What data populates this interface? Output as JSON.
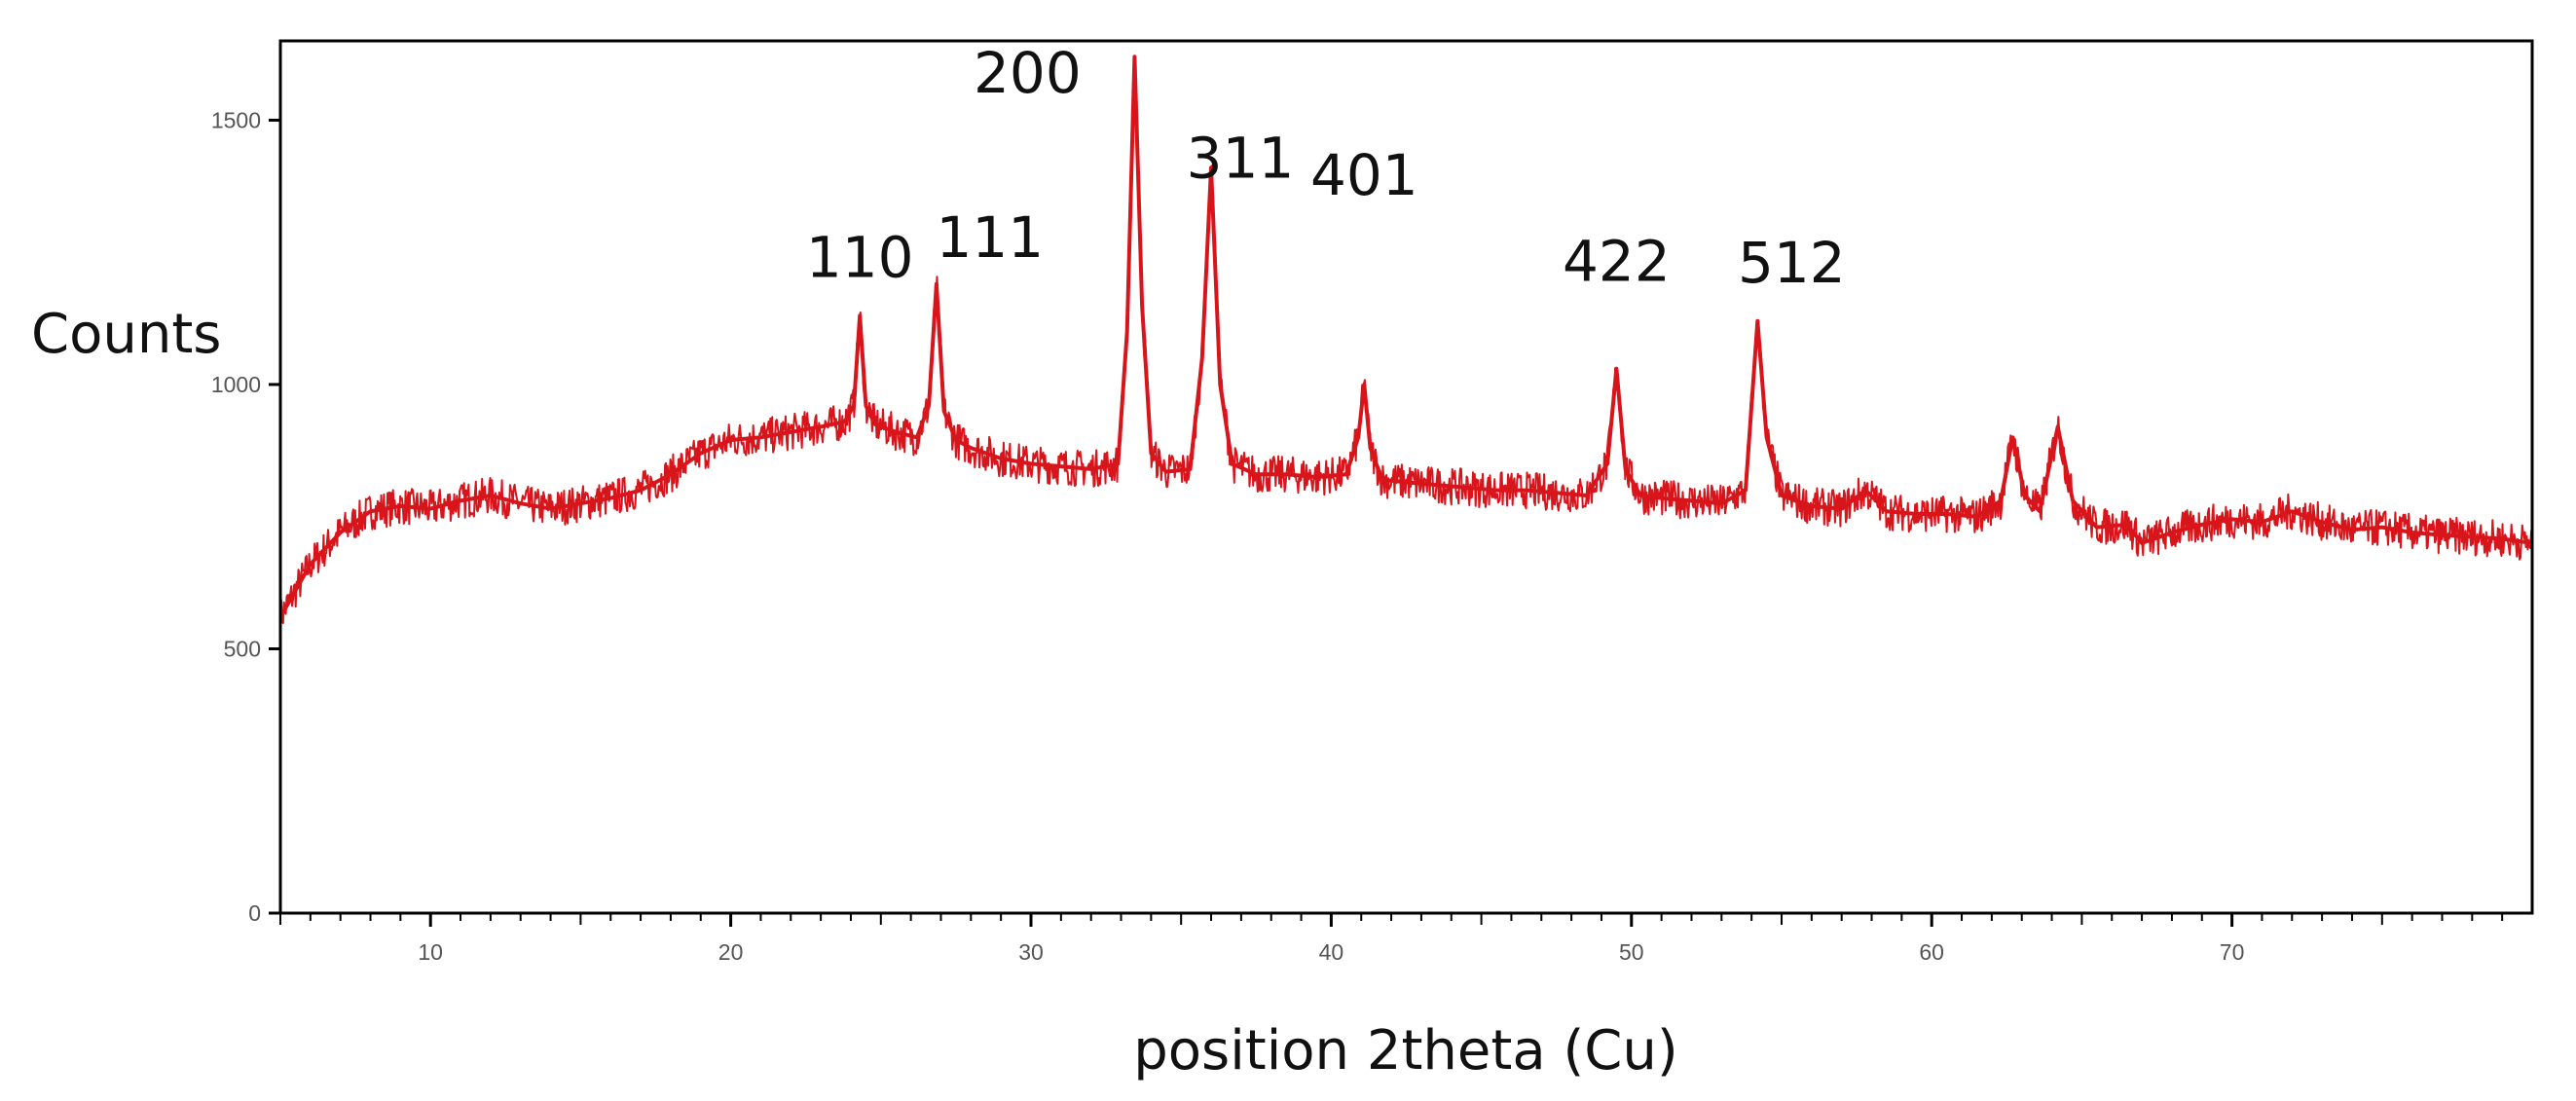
{
  "chart_data": {
    "type": "line",
    "title": "",
    "xlabel": "position 2theta (Cu)",
    "ylabel": "Counts",
    "xlim": [
      5,
      80
    ],
    "ylim": [
      0,
      1650
    ],
    "xticks": [
      10,
      20,
      30,
      40,
      50,
      60,
      70
    ],
    "yticks": [
      0,
      500,
      1000,
      1500
    ],
    "grid": false,
    "legend": "none",
    "series": [
      {
        "color": "#d8151b",
        "x": [
          5.0,
          6.0,
          7.0,
          8.0,
          9.0,
          10.0,
          11.0,
          12.0,
          13.0,
          14.0,
          15.0,
          16.0,
          17.0,
          18.0,
          19.0,
          20.0,
          21.0,
          22.0,
          23.0,
          23.8,
          24.1,
          24.3,
          24.5,
          24.8,
          25.5,
          26.2,
          26.6,
          26.85,
          27.1,
          27.5,
          28.0,
          29.0,
          30.0,
          31.0,
          32.0,
          32.9,
          33.2,
          33.45,
          33.7,
          34.0,
          34.5,
          35.3,
          35.7,
          36.0,
          36.3,
          36.7,
          37.5,
          38.5,
          39.5,
          40.5,
          40.9,
          41.1,
          41.3,
          41.7,
          42.5,
          43.5,
          44.5,
          45.5,
          46.5,
          47.5,
          48.5,
          49.2,
          49.5,
          49.8,
          50.3,
          51.0,
          52.0,
          53.0,
          53.8,
          54.2,
          54.5,
          55.0,
          56.0,
          57.0,
          57.8,
          58.5,
          59.5,
          60.5,
          61.5,
          62.3,
          62.7,
          63.1,
          63.6,
          64.2,
          64.7,
          65.5,
          66.5,
          67.0,
          68.0,
          69.0,
          70.0,
          71.0,
          72.0,
          73.0,
          74.0,
          75.0,
          76.0,
          77.0,
          78.0,
          79.0,
          80.0
        ],
        "values": [
          560,
          660,
          720,
          760,
          770,
          765,
          780,
          790,
          775,
          765,
          775,
          785,
          800,
          830,
          870,
          895,
          900,
          910,
          920,
          930,
          960,
          1130,
          960,
          925,
          910,
          900,
          960,
          1190,
          950,
          895,
          880,
          860,
          850,
          845,
          840,
          850,
          1100,
          1620,
          1150,
          870,
          835,
          840,
          1050,
          1410,
          1000,
          850,
          830,
          830,
          825,
          830,
          900,
          1000,
          880,
          820,
          815,
          810,
          805,
          800,
          800,
          795,
          790,
          850,
          1030,
          840,
          790,
          785,
          780,
          775,
          800,
          1120,
          900,
          790,
          770,
          765,
          800,
          760,
          755,
          755,
          750,
          780,
          900,
          790,
          760,
          920,
          780,
          730,
          735,
          700,
          720,
          735,
          745,
          740,
          760,
          740,
          725,
          730,
          720,
          715,
          712,
          708,
          700
        ]
      }
    ],
    "annotations": [
      {
        "text": "110",
        "x": 24.3,
        "y": 1130
      },
      {
        "text": "111",
        "x": 26.85,
        "y": 1190
      },
      {
        "text": "200",
        "x": 33.45,
        "y": 1620
      },
      {
        "text": "311",
        "x": 36.0,
        "y": 1410
      },
      {
        "text": "401",
        "x": 41.1,
        "y": 1000
      },
      {
        "text": "422",
        "x": 49.5,
        "y": 1030
      },
      {
        "text": "512",
        "x": 54.2,
        "y": 1120
      }
    ]
  }
}
